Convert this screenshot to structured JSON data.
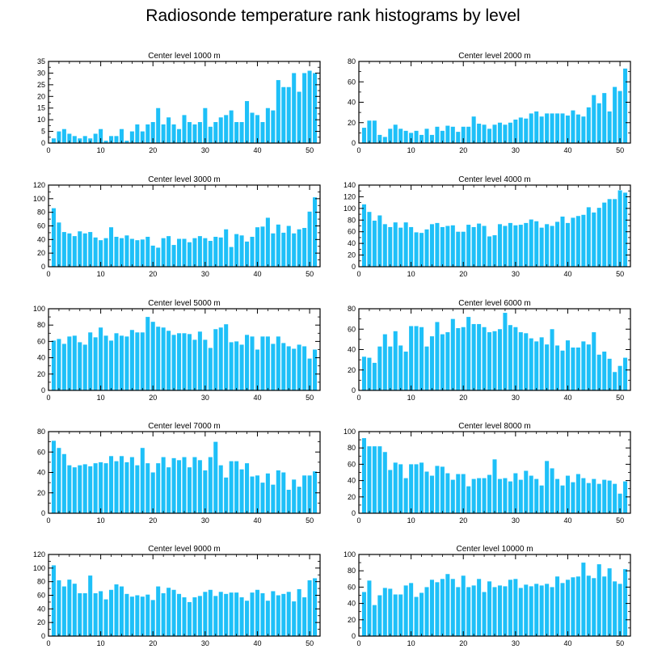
{
  "title": "Radiosonde temperature rank histograms by level",
  "colors": {
    "bar": "#1ec0f8",
    "axis": "#000000",
    "background": "#ffffff"
  },
  "chart_data": [
    {
      "type": "bar",
      "title": "Center level 1000 m",
      "xlim": [
        0,
        52
      ],
      "ylim": [
        0,
        35
      ],
      "xticks": [
        0,
        10,
        20,
        30,
        40,
        50
      ],
      "yticks": [
        0,
        5,
        10,
        15,
        20,
        25,
        30,
        35
      ],
      "categories": [
        1,
        2,
        3,
        4,
        5,
        6,
        7,
        8,
        9,
        10,
        11,
        12,
        13,
        14,
        15,
        16,
        17,
        18,
        19,
        20,
        21,
        22,
        23,
        24,
        25,
        26,
        27,
        28,
        29,
        30,
        31,
        32,
        33,
        34,
        35,
        36,
        37,
        38,
        39,
        40,
        41,
        42,
        43,
        44,
        45,
        46,
        47,
        48,
        49,
        50,
        51
      ],
      "values": [
        2,
        5,
        6,
        4,
        3,
        2,
        3,
        2,
        4,
        6,
        1,
        3,
        3,
        6,
        1,
        5,
        8,
        5,
        8,
        9,
        15,
        8,
        11,
        8,
        6,
        12,
        9,
        8,
        9,
        15,
        7,
        9,
        11,
        12,
        14,
        9,
        9,
        18,
        13,
        12,
        9,
        15,
        14,
        27,
        24,
        24,
        30,
        22,
        30,
        31,
        30
      ]
    },
    {
      "type": "bar",
      "title": "Center level 2000 m",
      "xlim": [
        0,
        52
      ],
      "ylim": [
        0,
        80
      ],
      "xticks": [
        0,
        10,
        20,
        30,
        40,
        50
      ],
      "yticks": [
        0,
        20,
        40,
        60,
        80
      ],
      "categories": [
        1,
        2,
        3,
        4,
        5,
        6,
        7,
        8,
        9,
        10,
        11,
        12,
        13,
        14,
        15,
        16,
        17,
        18,
        19,
        20,
        21,
        22,
        23,
        24,
        25,
        26,
        27,
        28,
        29,
        30,
        31,
        32,
        33,
        34,
        35,
        36,
        37,
        38,
        39,
        40,
        41,
        42,
        43,
        44,
        45,
        46,
        47,
        48,
        49,
        50,
        51
      ],
      "values": [
        15,
        22,
        22,
        8,
        6,
        14,
        18,
        14,
        12,
        10,
        12,
        8,
        14,
        8,
        16,
        12,
        17,
        16,
        11,
        16,
        16,
        26,
        19,
        18,
        14,
        18,
        20,
        18,
        20,
        23,
        25,
        24,
        29,
        31,
        26,
        29,
        29,
        29,
        29,
        27,
        32,
        28,
        26,
        35,
        47,
        39,
        49,
        31,
        55,
        51,
        73
      ]
    },
    {
      "type": "bar",
      "title": "Center level 3000 m",
      "xlim": [
        0,
        52
      ],
      "ylim": [
        0,
        120
      ],
      "xticks": [
        0,
        10,
        20,
        30,
        40,
        50
      ],
      "yticks": [
        0,
        20,
        40,
        60,
        80,
        100,
        120
      ],
      "categories": [
        1,
        2,
        3,
        4,
        5,
        6,
        7,
        8,
        9,
        10,
        11,
        12,
        13,
        14,
        15,
        16,
        17,
        18,
        19,
        20,
        21,
        22,
        23,
        24,
        25,
        26,
        27,
        28,
        29,
        30,
        31,
        32,
        33,
        34,
        35,
        36,
        37,
        38,
        39,
        40,
        41,
        42,
        43,
        44,
        45,
        46,
        47,
        48,
        49,
        50,
        51
      ],
      "values": [
        86,
        65,
        51,
        49,
        45,
        52,
        49,
        51,
        43,
        39,
        42,
        58,
        44,
        42,
        46,
        41,
        39,
        40,
        44,
        31,
        28,
        42,
        45,
        32,
        41,
        41,
        36,
        42,
        45,
        42,
        38,
        44,
        43,
        55,
        29,
        48,
        46,
        37,
        44,
        58,
        59,
        72,
        49,
        62,
        50,
        60,
        49,
        55,
        57,
        81,
        102
      ]
    },
    {
      "type": "bar",
      "title": "Center level 4000 m",
      "xlim": [
        0,
        52
      ],
      "ylim": [
        0,
        140
      ],
      "xticks": [
        0,
        10,
        20,
        30,
        40,
        50
      ],
      "yticks": [
        0,
        20,
        40,
        60,
        80,
        100,
        120,
        140
      ],
      "categories": [
        1,
        2,
        3,
        4,
        5,
        6,
        7,
        8,
        9,
        10,
        11,
        12,
        13,
        14,
        15,
        16,
        17,
        18,
        19,
        20,
        21,
        22,
        23,
        24,
        25,
        26,
        27,
        28,
        29,
        30,
        31,
        32,
        33,
        34,
        35,
        36,
        37,
        38,
        39,
        40,
        41,
        42,
        43,
        44,
        45,
        46,
        47,
        48,
        49,
        50,
        51
      ],
      "values": [
        107,
        94,
        79,
        88,
        73,
        68,
        76,
        67,
        76,
        68,
        59,
        58,
        64,
        73,
        75,
        68,
        70,
        71,
        60,
        60,
        72,
        68,
        74,
        70,
        52,
        54,
        73,
        70,
        75,
        71,
        72,
        75,
        81,
        78,
        67,
        73,
        70,
        77,
        86,
        75,
        84,
        87,
        89,
        102,
        93,
        101,
        110,
        116,
        116,
        131,
        127
      ]
    },
    {
      "type": "bar",
      "title": "Center level 5000 m",
      "xlim": [
        0,
        52
      ],
      "ylim": [
        0,
        100
      ],
      "xticks": [
        0,
        10,
        20,
        30,
        40,
        50
      ],
      "yticks": [
        0,
        20,
        40,
        60,
        80,
        100
      ],
      "categories": [
        1,
        2,
        3,
        4,
        5,
        6,
        7,
        8,
        9,
        10,
        11,
        12,
        13,
        14,
        15,
        16,
        17,
        18,
        19,
        20,
        21,
        22,
        23,
        24,
        25,
        26,
        27,
        28,
        29,
        30,
        31,
        32,
        33,
        34,
        35,
        36,
        37,
        38,
        39,
        40,
        41,
        42,
        43,
        44,
        45,
        46,
        47,
        48,
        49,
        50,
        51
      ],
      "values": [
        61,
        63,
        57,
        66,
        67,
        59,
        56,
        71,
        65,
        77,
        67,
        61,
        70,
        67,
        66,
        74,
        71,
        71,
        90,
        84,
        78,
        77,
        73,
        68,
        70,
        70,
        69,
        62,
        72,
        62,
        52,
        75,
        77,
        81,
        59,
        60,
        56,
        68,
        66,
        50,
        66,
        66,
        57,
        66,
        58,
        54,
        51,
        56,
        54,
        39,
        50
      ]
    },
    {
      "type": "bar",
      "title": "Center level 6000 m",
      "xlim": [
        0,
        52
      ],
      "ylim": [
        0,
        80
      ],
      "xticks": [
        0,
        10,
        20,
        30,
        40,
        50
      ],
      "yticks": [
        0,
        20,
        40,
        60,
        80
      ],
      "categories": [
        1,
        2,
        3,
        4,
        5,
        6,
        7,
        8,
        9,
        10,
        11,
        12,
        13,
        14,
        15,
        16,
        17,
        18,
        19,
        20,
        21,
        22,
        23,
        24,
        25,
        26,
        27,
        28,
        29,
        30,
        31,
        32,
        33,
        34,
        35,
        36,
        37,
        38,
        39,
        40,
        41,
        42,
        43,
        44,
        45,
        46,
        47,
        48,
        49,
        50,
        51
      ],
      "values": [
        33,
        32,
        27,
        43,
        55,
        43,
        58,
        44,
        38,
        63,
        63,
        62,
        43,
        53,
        67,
        55,
        57,
        70,
        61,
        62,
        72,
        65,
        65,
        62,
        57,
        58,
        60,
        76,
        64,
        62,
        57,
        56,
        51,
        48,
        52,
        45,
        60,
        44,
        39,
        49,
        42,
        42,
        48,
        45,
        57,
        35,
        38,
        31,
        18,
        24,
        32
      ]
    },
    {
      "type": "bar",
      "title": "Center level 7000 m",
      "xlim": [
        0,
        52
      ],
      "ylim": [
        0,
        80
      ],
      "xticks": [
        0,
        10,
        20,
        30,
        40,
        50
      ],
      "yticks": [
        0,
        20,
        40,
        60,
        80
      ],
      "categories": [
        1,
        2,
        3,
        4,
        5,
        6,
        7,
        8,
        9,
        10,
        11,
        12,
        13,
        14,
        15,
        16,
        17,
        18,
        19,
        20,
        21,
        22,
        23,
        24,
        25,
        26,
        27,
        28,
        29,
        30,
        31,
        32,
        33,
        34,
        35,
        36,
        37,
        38,
        39,
        40,
        41,
        42,
        43,
        44,
        45,
        46,
        47,
        48,
        49,
        50,
        51
      ],
      "values": [
        71,
        64,
        58,
        47,
        45,
        47,
        48,
        46,
        49,
        50,
        49,
        56,
        51,
        56,
        50,
        55,
        47,
        64,
        49,
        40,
        49,
        55,
        45,
        54,
        52,
        55,
        45,
        55,
        52,
        42,
        55,
        70,
        47,
        35,
        51,
        51,
        43,
        49,
        36,
        37,
        30,
        39,
        28,
        42,
        40,
        23,
        33,
        26,
        37,
        37,
        41
      ]
    },
    {
      "type": "bar",
      "title": "Center level 8000 m",
      "xlim": [
        0,
        52
      ],
      "ylim": [
        0,
        100
      ],
      "xticks": [
        0,
        10,
        20,
        30,
        40,
        50
      ],
      "yticks": [
        0,
        20,
        40,
        60,
        80,
        100
      ],
      "categories": [
        1,
        2,
        3,
        4,
        5,
        6,
        7,
        8,
        9,
        10,
        11,
        12,
        13,
        14,
        15,
        16,
        17,
        18,
        19,
        20,
        21,
        22,
        23,
        24,
        25,
        26,
        27,
        28,
        29,
        30,
        31,
        32,
        33,
        34,
        35,
        36,
        37,
        38,
        39,
        40,
        41,
        42,
        43,
        44,
        45,
        46,
        47,
        48,
        49,
        50,
        51
      ],
      "values": [
        92,
        82,
        82,
        82,
        75,
        53,
        62,
        60,
        43,
        60,
        60,
        62,
        51,
        46,
        58,
        57,
        49,
        41,
        48,
        48,
        33,
        42,
        43,
        43,
        47,
        66,
        42,
        43,
        39,
        49,
        41,
        52,
        46,
        42,
        34,
        64,
        55,
        42,
        34,
        46,
        38,
        48,
        43,
        37,
        42,
        36,
        41,
        40,
        36,
        24,
        39
      ]
    },
    {
      "type": "bar",
      "title": "Center level 9000 m",
      "xlim": [
        0,
        52
      ],
      "ylim": [
        0,
        120
      ],
      "xticks": [
        0,
        10,
        20,
        30,
        40,
        50
      ],
      "yticks": [
        0,
        20,
        40,
        60,
        80,
        100,
        120
      ],
      "categories": [
        1,
        2,
        3,
        4,
        5,
        6,
        7,
        8,
        9,
        10,
        11,
        12,
        13,
        14,
        15,
        16,
        17,
        18,
        19,
        20,
        21,
        22,
        23,
        24,
        25,
        26,
        27,
        28,
        29,
        30,
        31,
        32,
        33,
        34,
        35,
        36,
        37,
        38,
        39,
        40,
        41,
        42,
        43,
        44,
        45,
        46,
        47,
        48,
        49,
        50,
        51
      ],
      "values": [
        104,
        82,
        73,
        83,
        77,
        63,
        63,
        89,
        63,
        66,
        54,
        68,
        76,
        73,
        62,
        58,
        60,
        58,
        61,
        53,
        73,
        63,
        71,
        68,
        62,
        57,
        50,
        57,
        59,
        65,
        68,
        59,
        65,
        62,
        64,
        64,
        57,
        52,
        64,
        68,
        63,
        52,
        66,
        60,
        62,
        65,
        51,
        69,
        57,
        82,
        85
      ]
    },
    {
      "type": "bar",
      "title": "Center level 10000 m",
      "xlim": [
        0,
        52
      ],
      "ylim": [
        0,
        100
      ],
      "xticks": [
        0,
        10,
        20,
        30,
        40,
        50
      ],
      "yticks": [
        0,
        20,
        40,
        60,
        80,
        100
      ],
      "categories": [
        1,
        2,
        3,
        4,
        5,
        6,
        7,
        8,
        9,
        10,
        11,
        12,
        13,
        14,
        15,
        16,
        17,
        18,
        19,
        20,
        21,
        22,
        23,
        24,
        25,
        26,
        27,
        28,
        29,
        30,
        31,
        32,
        33,
        34,
        35,
        36,
        37,
        38,
        39,
        40,
        41,
        42,
        43,
        44,
        45,
        46,
        47,
        48,
        49,
        50,
        51
      ],
      "values": [
        54,
        68,
        38,
        50,
        59,
        58,
        51,
        51,
        62,
        65,
        48,
        53,
        60,
        69,
        66,
        70,
        76,
        70,
        60,
        74,
        60,
        62,
        70,
        54,
        67,
        60,
        62,
        61,
        69,
        70,
        59,
        63,
        61,
        64,
        62,
        64,
        60,
        73,
        65,
        69,
        72,
        73,
        90,
        74,
        71,
        88,
        73,
        83,
        67,
        64,
        82
      ]
    }
  ]
}
